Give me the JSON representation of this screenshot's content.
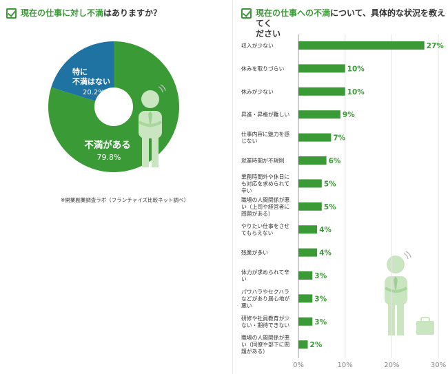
{
  "left": {
    "title_highlight": "現在の仕事に対し不満",
    "title_rest": "はありますか？",
    "note": "※開業副業調査ラボ（フランチャイズ比較ネット調べ）"
  },
  "right": {
    "title_highlight": "現在の仕事への不満",
    "title_rest_line1": "について、具体的な状況を教えてく",
    "title_line2": "ださい"
  },
  "colors": {
    "green": "#3a9a35",
    "blue": "#1f73a3",
    "figure": "#c9e6c0",
    "text": "#333333"
  },
  "chart_data": [
    {
      "type": "pie",
      "slices": [
        {
          "label_lines": [
            "不満がある"
          ],
          "value": 79.8,
          "value_label": "79.8%",
          "color": "#3a9a35"
        },
        {
          "label_lines": [
            "特に",
            "不満はない"
          ],
          "value": 20.2,
          "value_label": "20.2%",
          "color": "#1f73a3"
        }
      ],
      "donut": true
    },
    {
      "type": "bar",
      "orientation": "horizontal",
      "categories": [
        [
          "収入が少ない"
        ],
        [
          "休みを取りづらい"
        ],
        [
          "休みが少ない"
        ],
        [
          "昇進・昇格が難しい"
        ],
        [
          "仕事内容に魅力を感",
          "じない"
        ],
        [
          "就業時間が不規則"
        ],
        [
          "業務時間外や休日に",
          "も対応を求められて",
          "辛い"
        ],
        [
          "職場の人間関係が悪",
          "い（上司や経営者に",
          "問題がある）"
        ],
        [
          "やりたい仕事をさせ",
          "てもらえない"
        ],
        [
          "残業が多い"
        ],
        [
          "体力が求められて辛",
          "い"
        ],
        [
          "パワハラやセクハラ",
          "などがあり居心地が",
          "悪い"
        ],
        [
          "研修や社員教育が少",
          "ない・期待できない"
        ],
        [
          "職場の人間関係が悪",
          "い（同僚や部下に問",
          "題がある）"
        ]
      ],
      "values": [
        27,
        10,
        10,
        9,
        7,
        6,
        5,
        5,
        4,
        4,
        3,
        3,
        3,
        2
      ],
      "value_labels": [
        "27%",
        "10%",
        "10%",
        "9%",
        "7%",
        "6%",
        "5%",
        "5%",
        "4%",
        "4%",
        "3%",
        "3%",
        "3%",
        "2%"
      ],
      "xlim": [
        0,
        30
      ],
      "x_ticks": [
        "0%",
        "10%",
        "20%",
        "30%"
      ],
      "grid": true,
      "color": "#3a9a35"
    }
  ]
}
